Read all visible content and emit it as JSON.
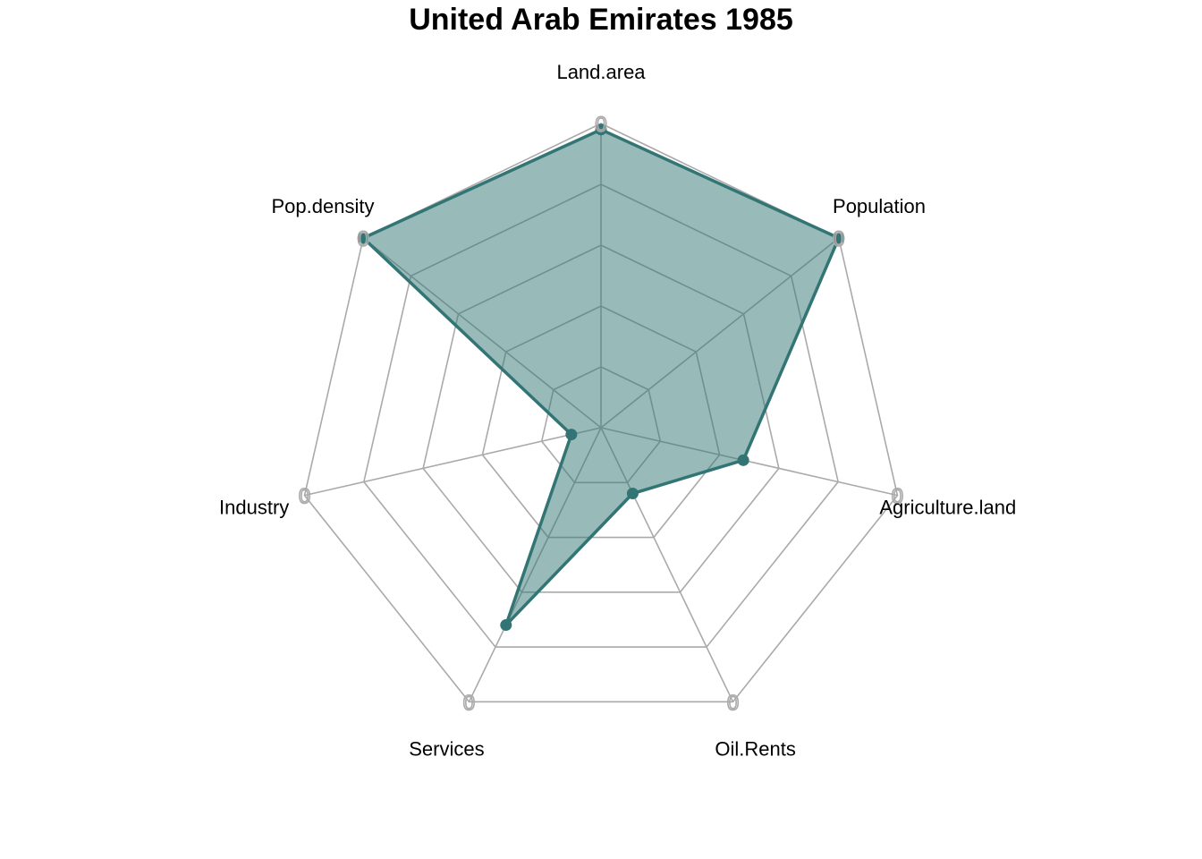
{
  "chart_data": {
    "type": "radar",
    "title": "United Arab Emirates 1985",
    "axes": [
      "Land.area",
      "Population",
      "Agriculture.land",
      "Oil.Rents",
      "Services",
      "Industry",
      "Pop.density"
    ],
    "series": [
      {
        "values": [
          0.98,
          1.0,
          0.48,
          0.24,
          0.72,
          0.1,
          1.0
        ]
      }
    ],
    "axis_max_label": "0",
    "grid_levels": 5,
    "range": [
      0,
      1
    ],
    "colors": {
      "series": "#327574",
      "fill": "#327574",
      "grid": "#aaaaaa",
      "background": "#ffffff"
    }
  }
}
